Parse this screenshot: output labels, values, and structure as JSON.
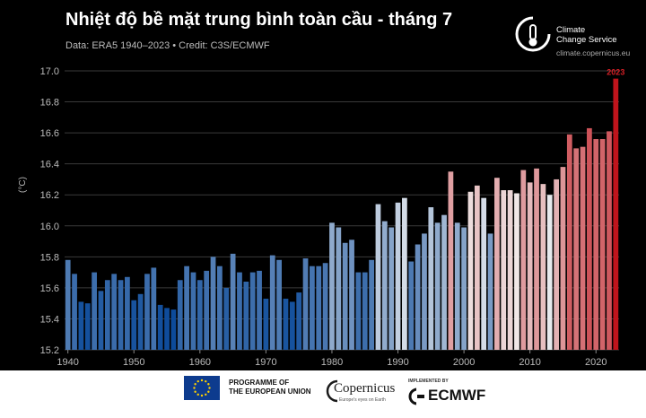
{
  "header": {
    "title": "Nhiệt độ bề mặt trung bình toàn cầu - tháng 7",
    "subtitle": "Data: ERA5 1940–2023 • Credit: C3S/ECMWF"
  },
  "brand": {
    "name_line1": "Climate",
    "name_line2": "Change Service",
    "url": "climate.copernicus.eu"
  },
  "footer": {
    "eu_line1": "PROGRAMME OF",
    "eu_line2": "THE EUROPEAN UNION",
    "copernicus": "Copernicus",
    "copernicus_tag": "Europe's eyes on Earth",
    "implemented_by": "IMPLEMENTED BY",
    "ecmwf": "ECMWF"
  },
  "chart_data": {
    "type": "bar",
    "title": "Nhiệt độ bề mặt trung bình toàn cầu - tháng 7",
    "ylabel": "(°C)",
    "xlabel": "",
    "ylim": [
      15.2,
      17.0
    ],
    "yticks": [
      15.2,
      15.4,
      15.6,
      15.8,
      16.0,
      16.2,
      16.4,
      16.6,
      16.8,
      17.0
    ],
    "xticks": [
      1940,
      1950,
      1960,
      1970,
      1980,
      1990,
      2000,
      2010,
      2020
    ],
    "grid": "horizontal",
    "annotations": [
      {
        "year": 2023,
        "text": "2023"
      }
    ],
    "colors": {
      "cold": "#0d4b9a",
      "neutral": "#f2f2f2",
      "warm": "#c0141c"
    },
    "x": [
      1940,
      1941,
      1942,
      1943,
      1944,
      1945,
      1946,
      1947,
      1948,
      1949,
      1950,
      1951,
      1952,
      1953,
      1954,
      1955,
      1956,
      1957,
      1958,
      1959,
      1960,
      1961,
      1962,
      1963,
      1964,
      1965,
      1966,
      1967,
      1968,
      1969,
      1970,
      1971,
      1972,
      1973,
      1974,
      1975,
      1976,
      1977,
      1978,
      1979,
      1980,
      1981,
      1982,
      1983,
      1984,
      1985,
      1986,
      1987,
      1988,
      1989,
      1990,
      1991,
      1992,
      1993,
      1994,
      1995,
      1996,
      1997,
      1998,
      1999,
      2000,
      2001,
      2002,
      2003,
      2004,
      2005,
      2006,
      2007,
      2008,
      2009,
      2010,
      2011,
      2012,
      2013,
      2014,
      2015,
      2016,
      2017,
      2018,
      2019,
      2020,
      2021,
      2022,
      2023
    ],
    "values": [
      15.78,
      15.69,
      15.51,
      15.5,
      15.7,
      15.58,
      15.65,
      15.69,
      15.65,
      15.67,
      15.52,
      15.56,
      15.69,
      15.73,
      15.49,
      15.47,
      15.46,
      15.65,
      15.74,
      15.7,
      15.65,
      15.71,
      15.8,
      15.74,
      15.6,
      15.82,
      15.7,
      15.64,
      15.7,
      15.71,
      15.53,
      15.81,
      15.78,
      15.53,
      15.51,
      15.57,
      15.79,
      15.74,
      15.74,
      15.76,
      16.02,
      15.99,
      15.89,
      15.91,
      15.7,
      15.7,
      15.78,
      16.14,
      16.03,
      15.99,
      16.15,
      16.18,
      15.77,
      15.88,
      15.95,
      16.12,
      16.02,
      16.07,
      16.35,
      16.02,
      15.99,
      16.22,
      16.26,
      16.18,
      15.95,
      16.31,
      16.23,
      16.23,
      16.21,
      16.36,
      16.28,
      16.37,
      16.27,
      16.2,
      16.3,
      16.38,
      16.59,
      16.5,
      16.51,
      16.63,
      16.56,
      16.56,
      16.61,
      16.95
    ]
  }
}
